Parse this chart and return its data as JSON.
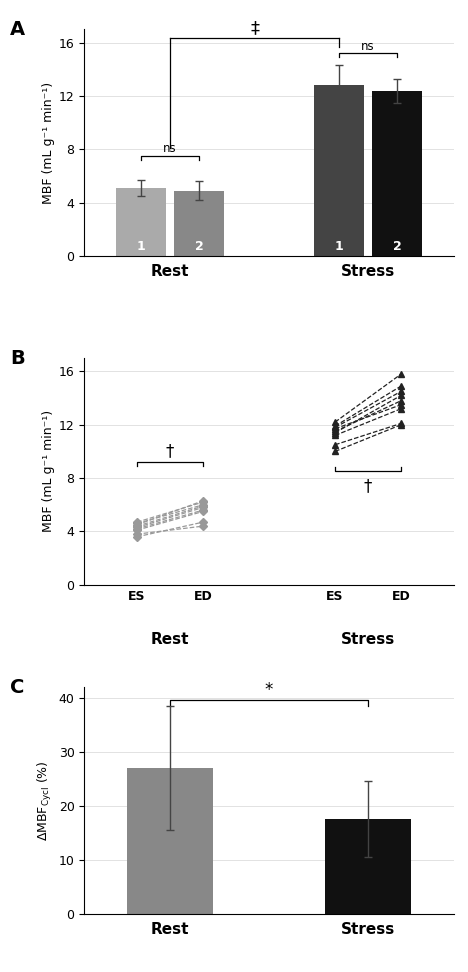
{
  "panel_A": {
    "bar_values": [
      5.1,
      4.9,
      12.8,
      12.4
    ],
    "bar_errors": [
      0.6,
      0.7,
      1.5,
      0.9
    ],
    "bar_colors": [
      "#aaaaaa",
      "#888888",
      "#444444",
      "#111111"
    ],
    "bar_labels": [
      "1",
      "2",
      "1",
      "2"
    ],
    "ylabel": "MBF (mL g⁻¹ min⁻¹)",
    "ylim": [
      0,
      17
    ],
    "yticks": [
      0,
      4,
      8,
      12,
      16
    ],
    "panel_label": "A"
  },
  "panel_B": {
    "rest_es": [
      4.5,
      4.3,
      4.1,
      3.8,
      4.7,
      4.6,
      4.2,
      4.4,
      3.6
    ],
    "rest_ed": [
      6.3,
      5.8,
      5.5,
      4.4,
      6.2,
      6.0,
      5.6,
      5.9,
      4.7
    ],
    "stress_es": [
      11.8,
      11.5,
      11.2,
      10.0,
      12.2,
      11.9,
      11.4,
      11.7,
      10.5
    ],
    "stress_ed": [
      14.5,
      13.8,
      13.2,
      12.0,
      15.8,
      14.9,
      14.2,
      13.5,
      12.1
    ],
    "ylabel": "MBF (mL g⁻¹ min⁻¹)",
    "ylim": [
      0,
      17
    ],
    "yticks": [
      0,
      4,
      8,
      12,
      16
    ],
    "panel_label": "B",
    "rest_color": "#999999",
    "stress_color": "#222222"
  },
  "panel_C": {
    "bar_values": [
      27.0,
      17.5
    ],
    "bar_errors": [
      11.5,
      7.0
    ],
    "bar_colors": [
      "#888888",
      "#111111"
    ],
    "ylabel": "ΔMBF$_\\mathrm{Cycl}$ (%)",
    "ylim": [
      0,
      42
    ],
    "yticks": [
      0,
      10,
      20,
      30,
      40
    ],
    "panel_label": "C"
  }
}
